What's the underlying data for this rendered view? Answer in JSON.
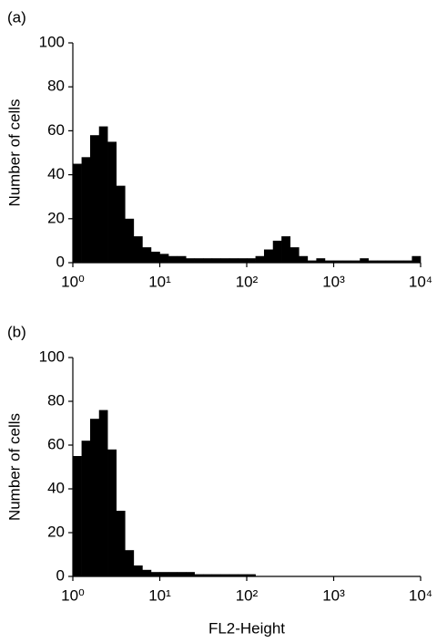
{
  "chart_data": [
    {
      "type": "histogram",
      "title": "(a)",
      "ylabel": "Number of cells",
      "color": "#000000",
      "log_x": true,
      "bins": [
        1,
        1.26,
        1.58,
        2,
        2.51,
        3.16,
        3.98,
        5.01,
        6.31,
        7.94,
        10,
        12.6,
        15.8,
        20,
        25.1,
        31.6,
        39.8,
        50.1,
        63.1,
        79.4,
        100,
        126,
        158,
        200,
        251,
        316,
        398,
        501,
        631,
        794,
        1000,
        1260,
        1580,
        2000,
        2510,
        3160,
        3980,
        5010,
        6310,
        7940,
        10000
      ],
      "counts": [
        45,
        48,
        58,
        62,
        55,
        35,
        20,
        12,
        7,
        5,
        4,
        3,
        3,
        2,
        2,
        2,
        2,
        2,
        2,
        2,
        2,
        3,
        6,
        10,
        12,
        7,
        3,
        1,
        2,
        1,
        1,
        1,
        1,
        2,
        1,
        1,
        1,
        1,
        1,
        3
      ],
      "xlim": [
        1,
        10000
      ],
      "xticks": [
        {
          "value": 1,
          "label": "10⁰"
        },
        {
          "value": 10,
          "label": "10¹"
        },
        {
          "value": 100,
          "label": "10²"
        },
        {
          "value": 1000,
          "label": "10³"
        },
        {
          "value": 10000,
          "label": "10⁴"
        }
      ],
      "ylim": [
        0,
        100
      ],
      "yticks": [
        0,
        20,
        40,
        60,
        80,
        100
      ]
    },
    {
      "type": "histogram",
      "title": "(b)",
      "ylabel": "Number of cells",
      "xlabel": "FL2-Height",
      "color": "#000000",
      "log_x": true,
      "bins": [
        1,
        1.26,
        1.58,
        2,
        2.51,
        3.16,
        3.98,
        5.01,
        6.31,
        7.94,
        10,
        12.6,
        15.8,
        20,
        25.1,
        31.6,
        39.8,
        50.1,
        63.1,
        79.4,
        100,
        126,
        158,
        200,
        251,
        316,
        398,
        501,
        631,
        794,
        1000,
        1260,
        1580,
        2000,
        2510,
        3160,
        3980,
        5010,
        6310,
        7940,
        10000
      ],
      "counts": [
        55,
        62,
        72,
        76,
        58,
        30,
        12,
        5,
        3,
        2,
        2,
        2,
        2,
        2,
        1,
        1,
        1,
        1,
        1,
        1,
        1,
        0,
        0,
        0,
        0,
        0,
        0,
        0,
        0,
        0,
        0,
        0,
        0,
        0,
        0,
        0,
        0,
        0,
        0,
        0
      ],
      "xlim": [
        1,
        10000
      ],
      "xticks": [
        {
          "value": 1,
          "label": "10⁰"
        },
        {
          "value": 10,
          "label": "10¹"
        },
        {
          "value": 100,
          "label": "10²"
        },
        {
          "value": 1000,
          "label": "10³"
        },
        {
          "value": 10000,
          "label": "10⁴"
        }
      ],
      "ylim": [
        0,
        100
      ],
      "yticks": [
        0,
        20,
        40,
        60,
        80,
        100
      ]
    }
  ]
}
